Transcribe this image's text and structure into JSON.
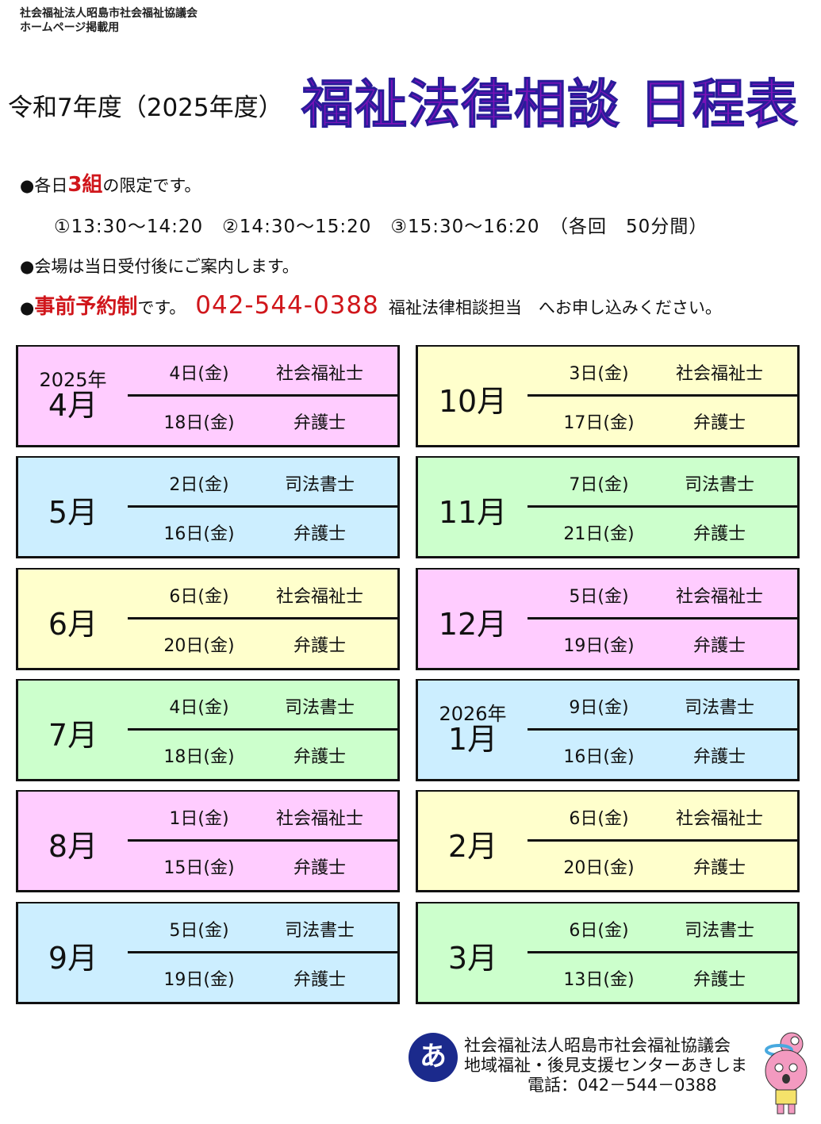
{
  "header": {
    "org": "社会福祉法人昭島市社会福祉協議会",
    "org_note": "ホームページ掲載用",
    "fiscal_year": "令和7年度（2025年度）",
    "title": "福祉法律相談 日程表"
  },
  "info": {
    "line1_pre": "●各日",
    "line1_red": "3組",
    "line1_post": "の限定です。",
    "times": "①13:30～14:20　②14:30～15:20　③15:30～16:20　（各回　50分間）",
    "line3": "●会場は当日受付後にご案内します。",
    "line4_bullet": "●",
    "line4_red": "事前予約制",
    "line4_mid": "です。",
    "line4_phone": "042-544-0388",
    "line4_post": "福祉法律相談担当　へお申し込みください。"
  },
  "colors": {
    "pink": "#ffccff",
    "blue": "#cceeff",
    "yellow": "#ffffcc",
    "green": "#ccffcc",
    "title": "#7a12b8",
    "accent_red": "#d0161b"
  },
  "schedule": [
    {
      "year": "2025年",
      "month": "4月",
      "color": "#ffccff",
      "rows": [
        {
          "date": "4日(金)",
          "pro": "社会福祉士"
        },
        {
          "date": "18日(金)",
          "pro": "弁護士"
        }
      ]
    },
    {
      "year": "",
      "month": "5月",
      "color": "#cceeff",
      "rows": [
        {
          "date": "2日(金)",
          "pro": "司法書士"
        },
        {
          "date": "16日(金)",
          "pro": "弁護士"
        }
      ]
    },
    {
      "year": "",
      "month": "6月",
      "color": "#ffffcc",
      "rows": [
        {
          "date": "6日(金)",
          "pro": "社会福祉士"
        },
        {
          "date": "20日(金)",
          "pro": "弁護士"
        }
      ]
    },
    {
      "year": "",
      "month": "7月",
      "color": "#ccffcc",
      "rows": [
        {
          "date": "4日(金)",
          "pro": "司法書士"
        },
        {
          "date": "18日(金)",
          "pro": "弁護士"
        }
      ]
    },
    {
      "year": "",
      "month": "8月",
      "color": "#ffccff",
      "rows": [
        {
          "date": "1日(金)",
          "pro": "社会福祉士"
        },
        {
          "date": "15日(金)",
          "pro": "弁護士"
        }
      ]
    },
    {
      "year": "",
      "month": "9月",
      "color": "#cceeff",
      "rows": [
        {
          "date": "5日(金)",
          "pro": "司法書士"
        },
        {
          "date": "19日(金)",
          "pro": "弁護士"
        }
      ]
    },
    {
      "year": "",
      "month": "10月",
      "color": "#ffffcc",
      "rows": [
        {
          "date": "3日(金)",
          "pro": "社会福祉士"
        },
        {
          "date": "17日(金)",
          "pro": "弁護士"
        }
      ]
    },
    {
      "year": "",
      "month": "11月",
      "color": "#ccffcc",
      "rows": [
        {
          "date": "7日(金)",
          "pro": "司法書士"
        },
        {
          "date": "21日(金)",
          "pro": "弁護士"
        }
      ]
    },
    {
      "year": "",
      "month": "12月",
      "color": "#ffccff",
      "rows": [
        {
          "date": "5日(金)",
          "pro": "社会福祉士"
        },
        {
          "date": "19日(金)",
          "pro": "弁護士"
        }
      ]
    },
    {
      "year": "2026年",
      "month": "1月",
      "color": "#cceeff",
      "rows": [
        {
          "date": "9日(金)",
          "pro": "司法書士"
        },
        {
          "date": "16日(金)",
          "pro": "弁護士"
        }
      ]
    },
    {
      "year": "",
      "month": "2月",
      "color": "#ffffcc",
      "rows": [
        {
          "date": "6日(金)",
          "pro": "社会福祉士"
        },
        {
          "date": "20日(金)",
          "pro": "弁護士"
        }
      ]
    },
    {
      "year": "",
      "month": "3月",
      "color": "#ccffcc",
      "rows": [
        {
          "date": "6日(金)",
          "pro": "司法書士"
        },
        {
          "date": "13日(金)",
          "pro": "弁護士"
        }
      ]
    }
  ],
  "footer": {
    "org": "社会福祉法人昭島市社会福祉協議会",
    "center": "地域福祉・後見支援センターあきしま",
    "tel": "電話：042－544－0388",
    "logo_icon": "shakyo-logo-icon",
    "mascot_icon": "mascot-character-icon"
  }
}
